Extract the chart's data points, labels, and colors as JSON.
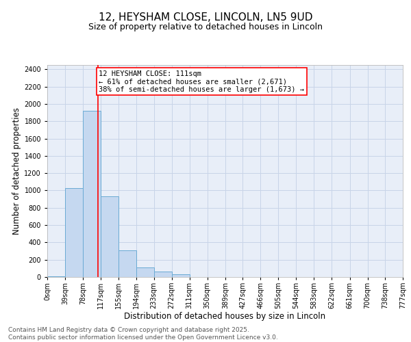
{
  "title1": "12, HEYSHAM CLOSE, LINCOLN, LN5 9UD",
  "title2": "Size of property relative to detached houses in Lincoln",
  "xlabel": "Distribution of detached houses by size in Lincoln",
  "ylabel": "Number of detached properties",
  "bar_edges": [
    0,
    39,
    78,
    117,
    155,
    194,
    233,
    272,
    311,
    350,
    389,
    427,
    466,
    505,
    544,
    583,
    622,
    661,
    700,
    738,
    777
  ],
  "bar_heights": [
    10,
    1030,
    1920,
    930,
    310,
    110,
    60,
    35,
    0,
    0,
    0,
    0,
    0,
    0,
    0,
    0,
    0,
    0,
    0,
    0
  ],
  "bar_color": "#c5d8f0",
  "bar_edge_color": "#6aaad4",
  "vline_x": 111,
  "vline_color": "red",
  "annotation_text": "12 HEYSHAM CLOSE: 111sqm\n← 61% of detached houses are smaller (2,671)\n38% of semi-detached houses are larger (1,673) →",
  "annotation_box_color": "white",
  "annotation_box_edge": "red",
  "ylim": [
    0,
    2450
  ],
  "yticks": [
    0,
    200,
    400,
    600,
    800,
    1000,
    1200,
    1400,
    1600,
    1800,
    2000,
    2200,
    2400
  ],
  "tick_labels": [
    "0sqm",
    "39sqm",
    "78sqm",
    "117sqm",
    "155sqm",
    "194sqm",
    "233sqm",
    "272sqm",
    "311sqm",
    "350sqm",
    "389sqm",
    "427sqm",
    "466sqm",
    "505sqm",
    "544sqm",
    "583sqm",
    "622sqm",
    "661sqm",
    "700sqm",
    "738sqm",
    "777sqm"
  ],
  "grid_color": "#c8d4e8",
  "background_color": "#e8eef8",
  "footer_text": "Contains HM Land Registry data © Crown copyright and database right 2025.\nContains public sector information licensed under the Open Government Licence v3.0.",
  "title_fontsize": 11,
  "subtitle_fontsize": 9,
  "axis_label_fontsize": 8.5,
  "tick_fontsize": 7,
  "annotation_fontsize": 7.5,
  "footer_fontsize": 6.5
}
